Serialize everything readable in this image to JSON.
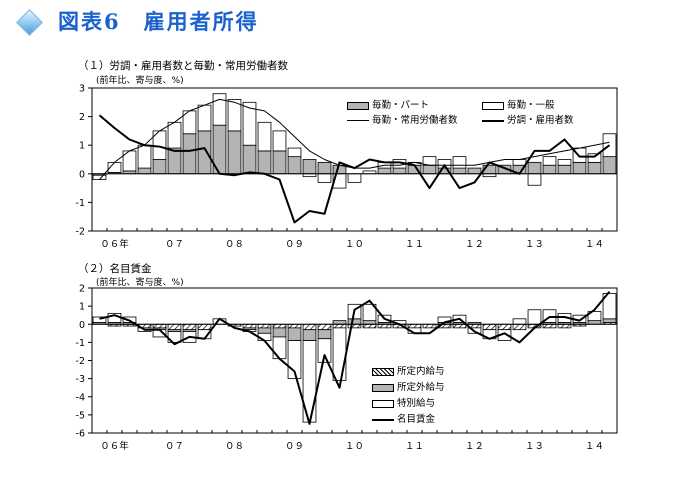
{
  "header": {
    "figure_title": "図表6　雇用者所得",
    "icon": "diamond-icon"
  },
  "colors": {
    "title_blue": "#1b62cf",
    "part_fill": "#b4b4b4",
    "general_fill": "#ffffff",
    "line": "#000000"
  },
  "x_axis_years": [
    {
      "label": "０６年",
      "index": 1
    },
    {
      "label": "０７",
      "index": 5
    },
    {
      "label": "０８",
      "index": 9
    },
    {
      "label": "０９",
      "index": 13
    },
    {
      "label": "１０",
      "index": 17
    },
    {
      "label": "１１",
      "index": 21
    },
    {
      "label": "１２",
      "index": 25
    },
    {
      "label": "１３",
      "index": 29
    },
    {
      "label": "１４",
      "index": 33
    }
  ],
  "chart_data": [
    {
      "type": "bar",
      "title": "（１）労調・雇用者数と毎勤・常用労働者数",
      "unit_note": "(前年比、寄与度、%)",
      "ylim": [
        -2,
        3
      ],
      "yticks": [
        "3",
        "2",
        "1",
        "0",
        "-1",
        "-2"
      ],
      "n_periods": 35,
      "stacked": true,
      "legend_position": "top-right",
      "series": [
        {
          "name": "毎勤・パート",
          "kind": "bar",
          "values": [
            -0.05,
            0.05,
            0.1,
            0.2,
            0.5,
            0.9,
            1.4,
            1.5,
            1.7,
            1.5,
            1.0,
            0.8,
            0.8,
            0.6,
            0.5,
            0.4,
            0.3,
            0.0,
            0.0,
            0.2,
            0.2,
            0.3,
            0.3,
            0.2,
            0.2,
            0.2,
            0.3,
            0.3,
            0.3,
            0.4,
            0.3,
            0.3,
            0.4,
            0.4,
            0.6
          ]
        },
        {
          "name": "毎勤・一般",
          "kind": "bar",
          "values": [
            -0.15,
            0.35,
            0.7,
            0.8,
            1.0,
            0.9,
            0.8,
            0.9,
            1.1,
            1.1,
            1.5,
            1.0,
            0.7,
            0.3,
            -0.1,
            -0.3,
            -0.5,
            -0.3,
            0.1,
            0.2,
            0.3,
            0.1,
            0.3,
            0.3,
            0.4,
            0.0,
            -0.1,
            0.0,
            0.2,
            -0.4,
            0.3,
            0.2,
            0.5,
            0.3,
            0.8
          ]
        },
        {
          "name": "毎勤・常用労働者数",
          "kind": "line",
          "values": [
            -0.2,
            0.4,
            0.8,
            1.0,
            1.5,
            1.8,
            2.2,
            2.4,
            2.6,
            2.5,
            2.3,
            2.2,
            1.8,
            1.3,
            0.8,
            0.5,
            0.3,
            0.2,
            0.2,
            0.3,
            0.3,
            0.4,
            0.3,
            0.3,
            0.3,
            0.3,
            0.4,
            0.5,
            0.5,
            0.6,
            0.7,
            0.8,
            0.9,
            1.0,
            1.1
          ]
        },
        {
          "name": "労調・雇用者数",
          "kind": "line",
          "values": [
            2.05,
            1.6,
            1.2,
            1.0,
            0.95,
            0.8,
            0.8,
            0.9,
            0.0,
            -0.05,
            0.05,
            0.0,
            -0.2,
            -1.7,
            -1.3,
            -1.4,
            0.4,
            0.2,
            0.5,
            0.4,
            0.4,
            0.3,
            -0.5,
            0.3,
            -0.5,
            -0.3,
            0.4,
            0.2,
            0.0,
            0.8,
            0.8,
            1.2,
            0.6,
            0.6,
            1.0
          ]
        }
      ]
    },
    {
      "type": "bar",
      "title": "（２）名目賃金",
      "unit_note": "(前年比、寄与度、%)",
      "ylim": [
        -6,
        2
      ],
      "yticks": [
        "2",
        "1",
        "0",
        "-1",
        "-2",
        "-3",
        "-4",
        "-5",
        "-6"
      ],
      "n_periods": 35,
      "stacked": true,
      "legend_position": "bottom-right",
      "series": [
        {
          "name": "所定内給与",
          "kind": "bar",
          "values": [
            0.0,
            -0.1,
            -0.1,
            -0.2,
            -0.2,
            -0.3,
            -0.3,
            -0.3,
            0.0,
            -0.1,
            -0.2,
            -0.2,
            -0.2,
            -0.2,
            -0.3,
            -0.3,
            -0.2,
            -0.2,
            -0.2,
            -0.2,
            -0.2,
            -0.2,
            -0.2,
            -0.2,
            -0.2,
            -0.2,
            -0.3,
            -0.3,
            -0.3,
            -0.2,
            -0.2,
            -0.2,
            -0.1,
            0.0,
            0.1
          ]
        },
        {
          "name": "所定外給与",
          "kind": "bar",
          "values": [
            0.1,
            0.1,
            0.1,
            0.0,
            -0.1,
            -0.1,
            -0.1,
            0.0,
            0.0,
            0.0,
            -0.1,
            -0.3,
            -0.5,
            -0.7,
            -0.6,
            -0.5,
            0.2,
            0.3,
            0.2,
            0.1,
            0.0,
            0.0,
            0.0,
            0.1,
            0.1,
            0.1,
            0.0,
            0.0,
            0.0,
            0.0,
            0.1,
            0.1,
            0.1,
            0.2,
            0.2
          ]
        },
        {
          "name": "特別給与",
          "kind": "bar",
          "values": [
            0.3,
            0.5,
            0.3,
            -0.2,
            -0.4,
            -0.6,
            -0.6,
            -0.5,
            0.3,
            0.0,
            -0.1,
            -0.4,
            -1.2,
            -2.1,
            -4.5,
            -1.3,
            -2.9,
            0.8,
            0.9,
            0.4,
            0.2,
            -0.3,
            0.0,
            0.3,
            0.4,
            -0.3,
            -0.5,
            -0.6,
            0.3,
            0.8,
            0.7,
            0.5,
            0.4,
            0.5,
            1.4
          ]
        },
        {
          "name": "名目賃金",
          "kind": "line",
          "values": [
            0.3,
            0.5,
            0.2,
            -0.3,
            -0.3,
            -1.1,
            -0.7,
            -0.8,
            0.3,
            -0.2,
            -0.4,
            -0.9,
            -1.9,
            -2.6,
            -5.5,
            -1.7,
            -3.5,
            0.8,
            1.3,
            0.3,
            0.0,
            -0.5,
            -0.5,
            0.1,
            0.3,
            -0.4,
            -0.8,
            -0.5,
            -1.0,
            -0.2,
            0.4,
            0.4,
            0.2,
            0.8,
            1.8
          ]
        }
      ]
    }
  ]
}
